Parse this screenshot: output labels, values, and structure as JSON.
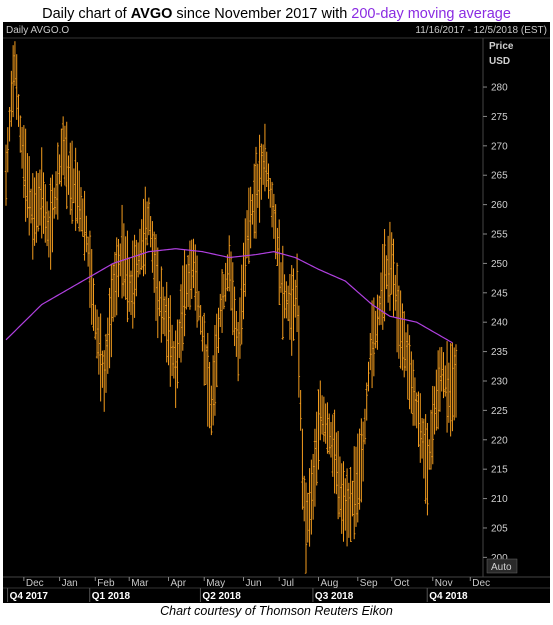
{
  "header": {
    "title_prefix": "Daily chart of ",
    "title_ticker": "AVGO",
    "title_middle": " since November 2017 with ",
    "title_ma": "200-day moving average"
  },
  "caption": "Chart courtesy of Thomson Reuters Eikon",
  "colors": {
    "background": "#000000",
    "price_bars": "#f39c1e",
    "moving_average": "#b040e0",
    "grid": "#2a2a2a",
    "title_ma": "#8a2be2"
  },
  "chart_data": {
    "type": "ohlc",
    "title": "Daily chart of AVGO since November 2017 with 200-day moving average",
    "panel_label": "Daily AVGO.O",
    "date_range_label": "11/16/2017 - 12/5/2018 (EST)",
    "y_axis_title": "Price",
    "y_axis_unit": "USD",
    "auto_label": "Auto",
    "ylim": [
      197,
      288
    ],
    "y_ticks": [
      200,
      205,
      210,
      215,
      220,
      225,
      230,
      235,
      240,
      245,
      250,
      255,
      260,
      265,
      270,
      275,
      280
    ],
    "grid": false,
    "month_labels": [
      "Dec",
      "Jan",
      "Feb",
      "Mar",
      "Apr",
      "May",
      "Jun",
      "Jul",
      "Aug",
      "Sep",
      "Oct",
      "Nov",
      "Dec"
    ],
    "month_day_index": [
      10,
      30,
      50,
      69,
      91,
      111,
      133,
      153,
      175,
      197,
      216,
      239,
      260
    ],
    "quarter_labels": [
      {
        "label": "Q4 2017",
        "day_index": 2
      },
      {
        "label": "Q1 2018",
        "day_index": 48
      },
      {
        "label": "Q2 2018",
        "day_index": 110
      },
      {
        "label": "Q3 2018",
        "day_index": 173
      },
      {
        "label": "Q4 2018",
        "day_index": 237
      }
    ],
    "series": [
      {
        "name": "AVGO.O",
        "style": "ohlc-bars",
        "anchors": [
          {
            "i": 0,
            "v": 265
          },
          {
            "i": 3,
            "v": 278
          },
          {
            "i": 5,
            "v": 284
          },
          {
            "i": 8,
            "v": 272
          },
          {
            "i": 11,
            "v": 265
          },
          {
            "i": 15,
            "v": 258
          },
          {
            "i": 20,
            "v": 262
          },
          {
            "i": 24,
            "v": 255
          },
          {
            "i": 28,
            "v": 262
          },
          {
            "i": 32,
            "v": 270
          },
          {
            "i": 35,
            "v": 265
          },
          {
            "i": 40,
            "v": 262
          },
          {
            "i": 45,
            "v": 255
          },
          {
            "i": 50,
            "v": 240
          },
          {
            "i": 55,
            "v": 230
          },
          {
            "i": 60,
            "v": 245
          },
          {
            "i": 65,
            "v": 252
          },
          {
            "i": 70,
            "v": 245
          },
          {
            "i": 75,
            "v": 252
          },
          {
            "i": 80,
            "v": 258
          },
          {
            "i": 85,
            "v": 245
          },
          {
            "i": 90,
            "v": 240
          },
          {
            "i": 95,
            "v": 232
          },
          {
            "i": 100,
            "v": 245
          },
          {
            "i": 105,
            "v": 250
          },
          {
            "i": 110,
            "v": 238
          },
          {
            "i": 115,
            "v": 225
          },
          {
            "i": 120,
            "v": 242
          },
          {
            "i": 125,
            "v": 250
          },
          {
            "i": 130,
            "v": 235
          },
          {
            "i": 135,
            "v": 255
          },
          {
            "i": 140,
            "v": 262
          },
          {
            "i": 145,
            "v": 268
          },
          {
            "i": 150,
            "v": 258
          },
          {
            "i": 155,
            "v": 245
          },
          {
            "i": 160,
            "v": 242
          },
          {
            "i": 163,
            "v": 245
          },
          {
            "i": 166,
            "v": 215
          },
          {
            "i": 168,
            "v": 205
          },
          {
            "i": 172,
            "v": 212
          },
          {
            "i": 176,
            "v": 225
          },
          {
            "i": 180,
            "v": 222
          },
          {
            "i": 184,
            "v": 218
          },
          {
            "i": 188,
            "v": 210
          },
          {
            "i": 192,
            "v": 208
          },
          {
            "i": 196,
            "v": 212
          },
          {
            "i": 200,
            "v": 218
          },
          {
            "i": 204,
            "v": 235
          },
          {
            "i": 208,
            "v": 240
          },
          {
            "i": 212,
            "v": 248
          },
          {
            "i": 216,
            "v": 250
          },
          {
            "i": 220,
            "v": 240
          },
          {
            "i": 224,
            "v": 235
          },
          {
            "i": 228,
            "v": 228
          },
          {
            "i": 232,
            "v": 222
          },
          {
            "i": 236,
            "v": 215
          },
          {
            "i": 240,
            "v": 225
          },
          {
            "i": 244,
            "v": 232
          },
          {
            "i": 248,
            "v": 228
          },
          {
            "i": 252,
            "v": 230
          }
        ]
      },
      {
        "name": "200-day moving average",
        "style": "line",
        "anchors": [
          {
            "i": 0,
            "v": 237
          },
          {
            "i": 20,
            "v": 243
          },
          {
            "i": 40,
            "v": 246.5
          },
          {
            "i": 60,
            "v": 250
          },
          {
            "i": 80,
            "v": 252
          },
          {
            "i": 95,
            "v": 252.5
          },
          {
            "i": 110,
            "v": 252
          },
          {
            "i": 125,
            "v": 251
          },
          {
            "i": 140,
            "v": 251.5
          },
          {
            "i": 150,
            "v": 252
          },
          {
            "i": 162,
            "v": 251
          },
          {
            "i": 175,
            "v": 249
          },
          {
            "i": 190,
            "v": 247
          },
          {
            "i": 205,
            "v": 243
          },
          {
            "i": 215,
            "v": 241
          },
          {
            "i": 230,
            "v": 240
          },
          {
            "i": 250,
            "v": 236.5
          }
        ]
      }
    ]
  }
}
